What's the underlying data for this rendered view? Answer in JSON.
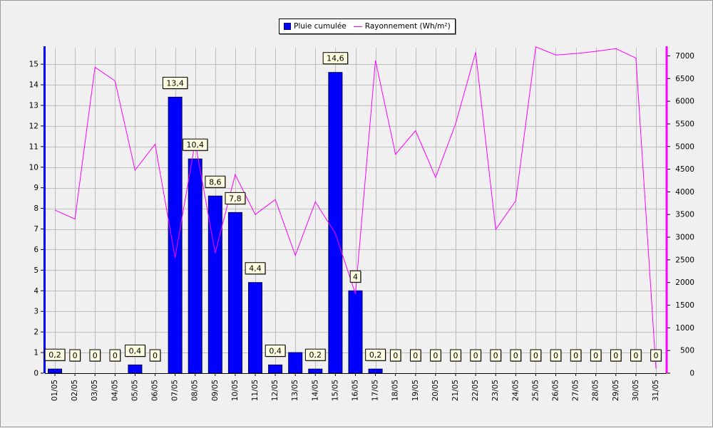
{
  "chart_data": {
    "type": "bar",
    "categories": [
      "01/05",
      "02/05",
      "03/05",
      "04/05",
      "05/05",
      "06/05",
      "07/05",
      "08/05",
      "09/05",
      "10/05",
      "11/05",
      "12/05",
      "13/05",
      "14/05",
      "15/05",
      "16/05",
      "17/05",
      "18/05",
      "19/05",
      "20/05",
      "21/05",
      "22/05",
      "23/05",
      "24/05",
      "25/05",
      "26/05",
      "27/05",
      "28/05",
      "29/05",
      "30/05",
      "31/05"
    ],
    "series": [
      {
        "name": "Pluie cumulée",
        "type": "bar",
        "axis": "left",
        "color": "#0000ff",
        "values": [
          0.2,
          0,
          0,
          0,
          0.4,
          0,
          13.4,
          10.4,
          8.6,
          7.8,
          4.4,
          0.4,
          1,
          0.2,
          14.6,
          4,
          0.2,
          0,
          0,
          0,
          0,
          0,
          0,
          0,
          0,
          0,
          0,
          0,
          0,
          0,
          0
        ],
        "labels": [
          "0,2",
          "0",
          "0",
          "0",
          "0,4",
          "0",
          "13,4",
          "10,4",
          "8,6",
          "7,8",
          "4,4",
          "0,4",
          "",
          "0,2",
          "14,6",
          "4",
          "0,2",
          "0",
          "0",
          "0",
          "0",
          "0",
          "0",
          "0",
          "0",
          "0",
          "0",
          "0",
          "0",
          "0",
          "0"
        ]
      },
      {
        "name": "Rayonnement (Wh/m²)",
        "type": "line",
        "axis": "right",
        "color": "#ff00ff",
        "values": [
          3600,
          3400,
          6750,
          6450,
          4480,
          5050,
          2550,
          5100,
          2650,
          4380,
          3500,
          3830,
          2600,
          3780,
          3080,
          1750,
          6900,
          4830,
          5350,
          4320,
          5500,
          7080,
          3170,
          3800,
          7200,
          7020,
          7050,
          7100,
          7160,
          6950,
          100
        ]
      }
    ],
    "y_left": {
      "min": 0,
      "max": 15.8,
      "ticks": [
        "0",
        "1",
        "2",
        "3",
        "4",
        "5",
        "6",
        "7",
        "8",
        "9",
        "10",
        "11",
        "12",
        "13",
        "14",
        "15"
      ]
    },
    "y_right": {
      "min": 0,
      "max": 7180,
      "ticks": [
        "0",
        "500",
        "1000",
        "1500",
        "2000",
        "2500",
        "3000",
        "3500",
        "4000",
        "4500",
        "5000",
        "5500",
        "6000",
        "6500",
        "7000"
      ]
    },
    "left_axis_color": "#0000ff",
    "right_axis_color": "#ff00ff",
    "grid": true,
    "legend_position": "top-center"
  }
}
